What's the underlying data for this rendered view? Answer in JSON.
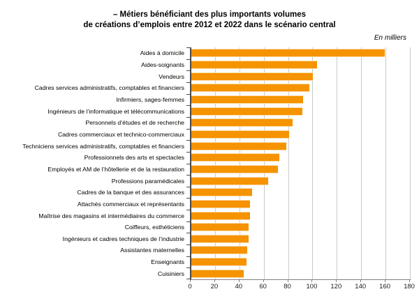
{
  "title": {
    "line1": "– Métiers bénéficiant des plus importants volumes",
    "line2": "de créations d’emplois entre 2012 et 2022 dans le scénario central"
  },
  "unit_label": "En milliers",
  "chart_data": {
    "type": "bar",
    "orientation": "horizontal",
    "title": "– Métiers bénéficiant des plus importants volumes de créations d’emplois entre 2012 et 2022 dans le scénario central",
    "unit": "En milliers",
    "categories": [
      "Aides à domicile",
      "Aides-soignants",
      "Vendeurs",
      "Cadres services administratifs, comptables et financiers",
      "Infirmiers, sages-femmes",
      "Ingénieurs de l’informatique et télécommunications",
      "Personnels d’études et de recherche",
      "Cadres commerciaux et technico-commerciaux",
      "Techniciens services administratifs, comptables et financiers",
      "Professionnels des arts et spectacles",
      "Employés et AM de l’hôtellerie et de la restauration",
      "Professions paramédicales",
      "Cadres de la banque et des assurances",
      "Attachés commerciaux et représentants",
      "Maîtrise des magasins et intermédiaires du commerce",
      "Coiffeurs, esthéticiens",
      "Ingénieurs et cadres techniques de l’industrie",
      "Assistantes maternelles",
      "Enseignants",
      "Cuisiniers"
    ],
    "values": [
      159,
      103,
      100,
      97,
      92,
      91,
      83,
      80,
      78,
      72,
      71,
      63,
      50,
      48,
      48,
      47,
      47,
      46,
      45,
      43
    ],
    "xlim": [
      0,
      180
    ],
    "x_ticks": [
      0,
      20,
      40,
      60,
      80,
      100,
      120,
      140,
      160,
      180
    ],
    "bar_color": "#F59300",
    "gridline_color": "#C9C9C9",
    "grid": true,
    "legend": "none"
  }
}
